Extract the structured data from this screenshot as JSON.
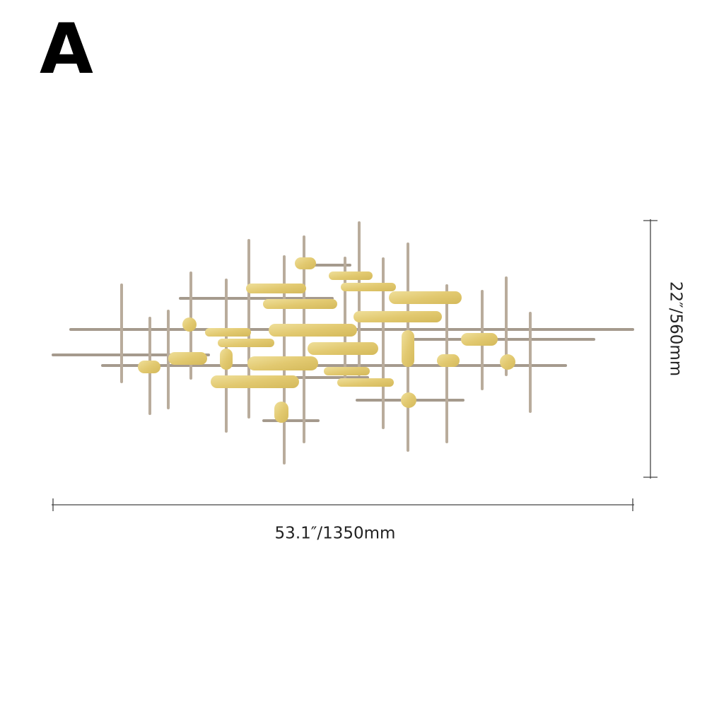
{
  "label": "A",
  "dimensions": {
    "height": "22″/560mm",
    "width": "53.1″/1350mm"
  }
}
